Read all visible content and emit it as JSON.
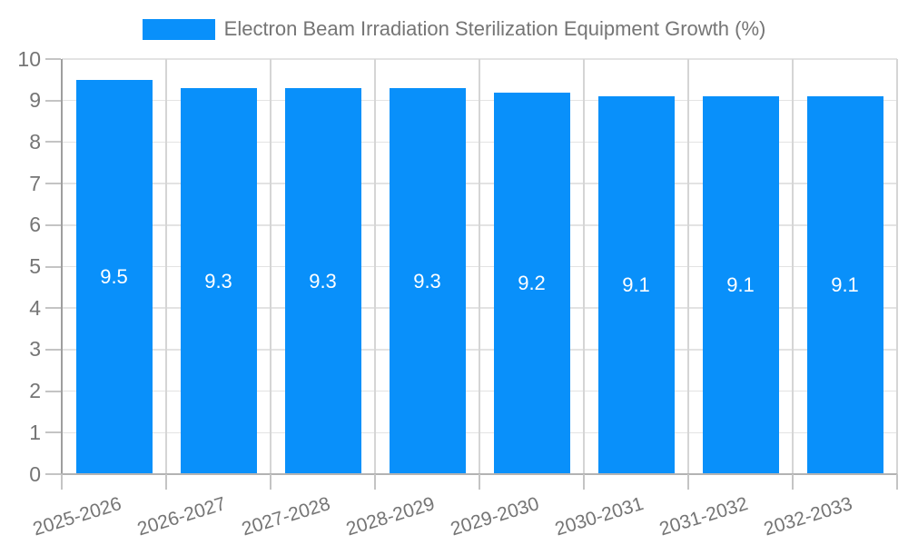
{
  "legend": {
    "label": "Electron Beam Irradiation Sterilization Equipment Growth (%)"
  },
  "chart_data": {
    "type": "bar",
    "title": "Electron Beam Irradiation Sterilization Equipment Growth (%)",
    "categories": [
      "2025-2026",
      "2026-2027",
      "2027-2028",
      "2028-2029",
      "2029-2030",
      "2030-2031",
      "2031-2032",
      "2032-2033"
    ],
    "values": [
      9.5,
      9.3,
      9.3,
      9.3,
      9.2,
      9.1,
      9.1,
      9.1
    ],
    "value_labels": [
      "9.5",
      "9.3",
      "9.3",
      "9.3",
      "9.2",
      "9.1",
      "9.1",
      "9.1"
    ],
    "xlabel": "",
    "ylabel": "",
    "ylim": [
      0,
      10
    ],
    "ytick_step": 1,
    "grid": "on",
    "legend_position": "top-center",
    "bar_label_position": "center"
  },
  "colors": {
    "bar": "#0990fa",
    "bar_value_text": "#ffffff",
    "legend_text": "#757575",
    "axis_text": "#757575",
    "hgrid": "#e3e3e3",
    "vgrid": "#d5d5d5",
    "y_axis_line": "#9e9e9e",
    "x_axis_line": "#b3b3b3",
    "tick": "#c4c4c4",
    "background": "#ffffff"
  }
}
